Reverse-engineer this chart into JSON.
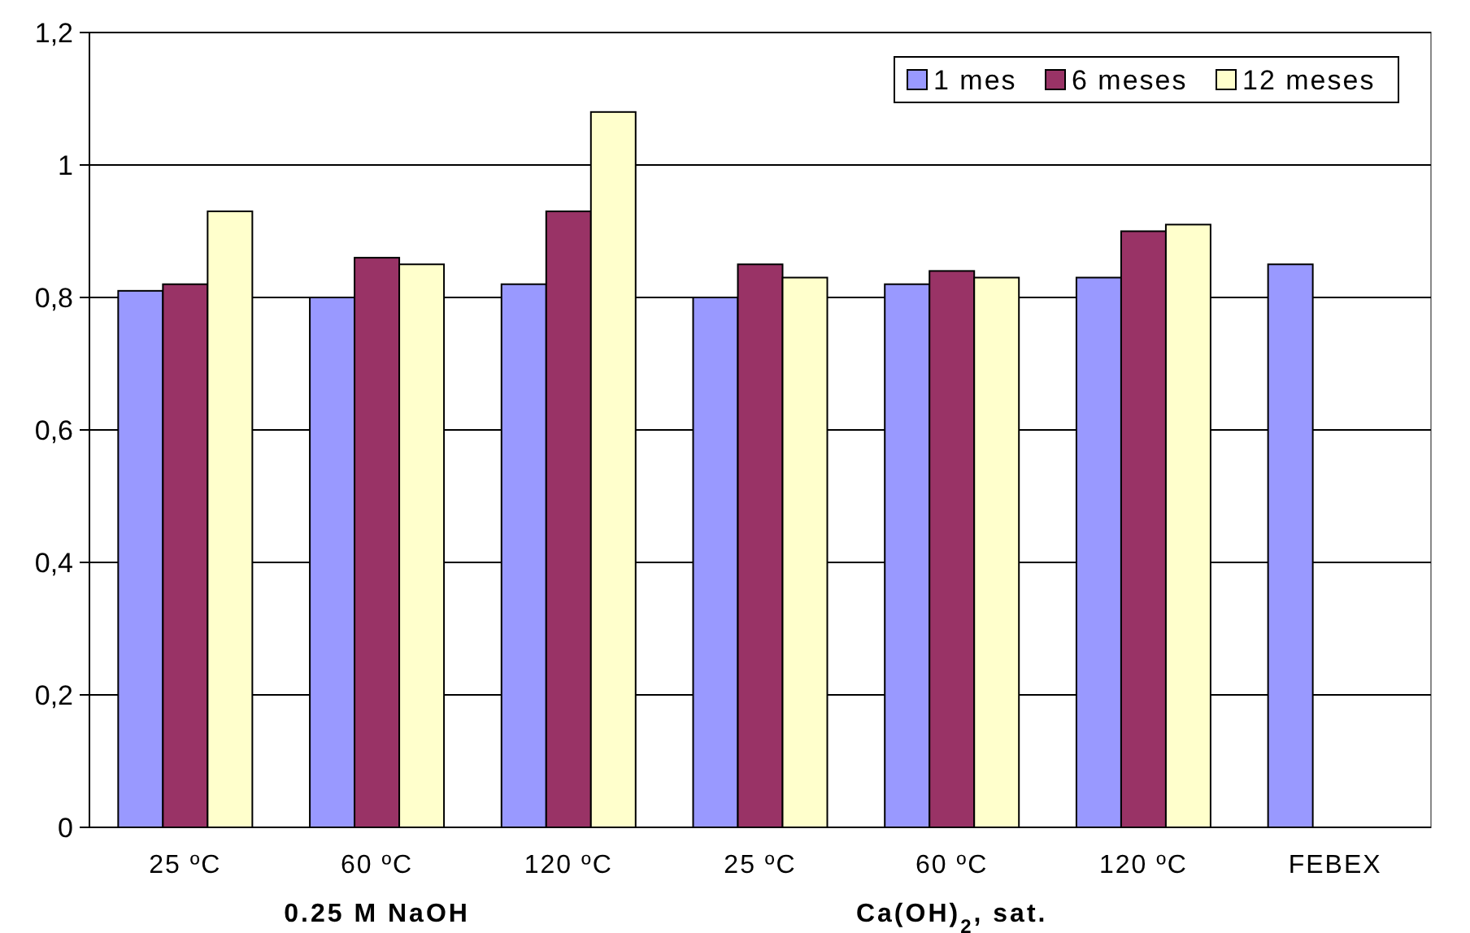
{
  "chart_data": {
    "type": "bar",
    "categories": [
      "25 ºC",
      "60 ºC",
      "120 ºC",
      "25 ºC",
      "60 ºC",
      "120 ºC",
      "FEBEX"
    ],
    "series": [
      {
        "name": "1 mes",
        "color": "#9999ff",
        "values": [
          0.81,
          0.8,
          0.82,
          0.8,
          0.82,
          0.83,
          0.85
        ]
      },
      {
        "name": "6 meses",
        "color": "#993366",
        "values": [
          0.82,
          0.86,
          0.93,
          0.85,
          0.84,
          0.9,
          null
        ]
      },
      {
        "name": "12 meses",
        "color": "#ffffcc",
        "values": [
          0.93,
          0.85,
          1.08,
          0.83,
          0.83,
          0.91,
          null
        ]
      }
    ],
    "ylim": [
      0,
      1.2
    ],
    "yticks": [
      {
        "value": 0,
        "label": "0"
      },
      {
        "value": 0.2,
        "label": "0,2"
      },
      {
        "value": 0.4,
        "label": "0,4"
      },
      {
        "value": 0.6,
        "label": "0,6"
      },
      {
        "value": 0.8,
        "label": "0,8"
      },
      {
        "value": 1,
        "label": "1"
      },
      {
        "value": 1.2,
        "label": "1,2"
      }
    ],
    "grid": "y",
    "legend": "top right",
    "annotations": [
      "0.25 M NaOH",
      "Ca(OH)$_{2}$, sat."
    ]
  }
}
